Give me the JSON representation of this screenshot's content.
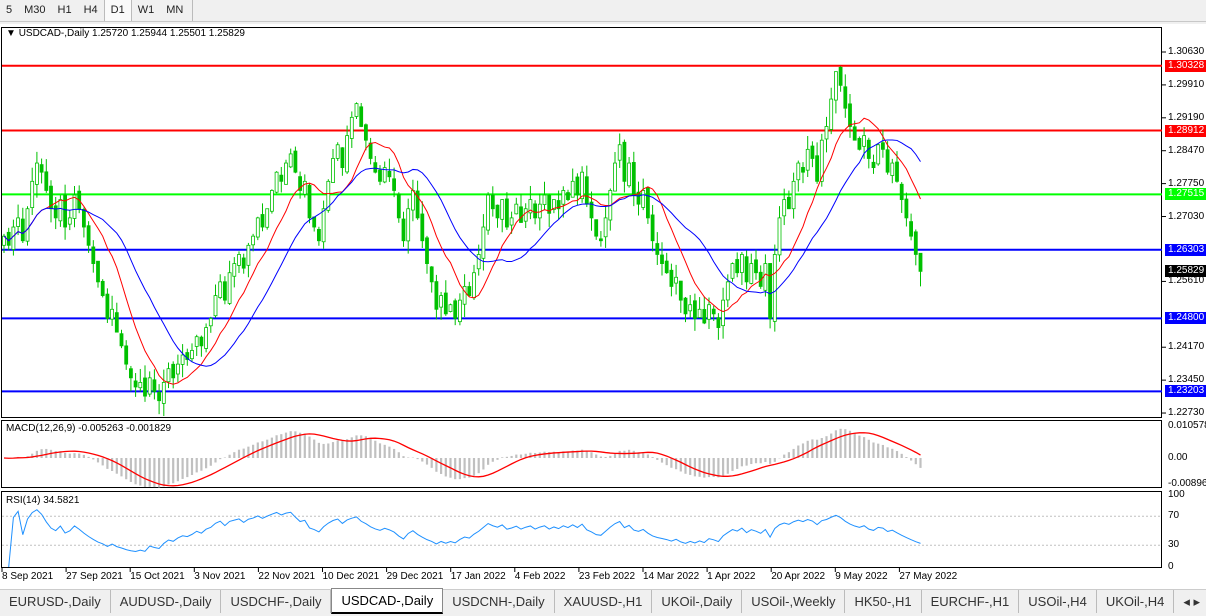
{
  "toolbar": {
    "timeframes": [
      "5",
      "M30",
      "H1",
      "H4",
      "D1",
      "W1",
      "MN"
    ],
    "active": "D1"
  },
  "chart": {
    "header": "USDCAD-,Daily  1.25720 1.25944 1.25501 1.25829",
    "symbol": "USDCAD-",
    "period": "Daily",
    "last_bar": {
      "open": 1.2572,
      "high": 1.25944,
      "low": 1.25501,
      "close": 1.25829
    },
    "current_price": "1.25829",
    "price_axis": [
      "1.30630",
      "1.29910",
      "1.29190",
      "1.28470",
      "1.27750",
      "1.27030",
      "1.25610",
      "1.24170",
      "1.23450",
      "1.22730"
    ],
    "levels": [
      {
        "price": "1.30328",
        "color": "#ff0000"
      },
      {
        "price": "1.28912",
        "color": "#ff0000"
      },
      {
        "price": "1.27515",
        "color": "#00ff00"
      },
      {
        "price": "1.26303",
        "color": "#0000ff"
      },
      {
        "price": "1.24800",
        "color": "#0000ff"
      },
      {
        "price": "1.23203",
        "color": "#0000ff"
      }
    ],
    "colors": {
      "bull": "#00c000",
      "bear": "#00c000",
      "ma_fast": "#ff0000",
      "ma_slow": "#0000ff",
      "macd_hist": "#c0c0c0",
      "macd_signal": "#ff0000",
      "rsi": "#1e90ff"
    },
    "dates": [
      "8 Sep 2021",
      "27 Sep 2021",
      "15 Oct 2021",
      "3 Nov 2021",
      "22 Nov 2021",
      "10 Dec 2021",
      "29 Dec 2021",
      "17 Jan 2022",
      "4 Feb 2022",
      "23 Feb 2022",
      "14 Mar 2022",
      "1 Apr 2022",
      "20 Apr 2022",
      "9 May 2022",
      "27 May 2022"
    ],
    "closes": [
      1.266,
      1.264,
      1.268,
      1.27,
      1.265,
      1.272,
      1.278,
      1.282,
      1.28,
      1.276,
      1.272,
      1.27,
      1.274,
      1.268,
      1.27,
      1.275,
      1.272,
      1.268,
      1.264,
      1.26,
      1.256,
      1.253,
      1.248,
      1.25,
      1.245,
      1.242,
      1.238,
      1.235,
      1.233,
      1.234,
      1.231,
      1.235,
      1.232,
      1.23,
      1.234,
      1.237,
      1.235,
      1.238,
      1.24,
      1.239,
      1.241,
      1.244,
      1.242,
      1.246,
      1.248,
      1.253,
      1.256,
      1.252,
      1.258,
      1.26,
      1.262,
      1.259,
      1.264,
      1.266,
      1.27,
      1.268,
      1.272,
      1.276,
      1.28,
      1.278,
      1.282,
      1.284,
      1.28,
      1.276,
      1.278,
      1.27,
      1.268,
      1.265,
      1.272,
      1.278,
      1.283,
      1.286,
      1.281,
      1.288,
      1.292,
      1.295,
      1.29,
      1.287,
      1.283,
      1.28,
      1.278,
      1.281,
      1.279,
      1.276,
      1.27,
      1.265,
      1.272,
      1.276,
      1.27,
      1.265,
      1.26,
      1.256,
      1.25,
      1.253,
      1.249,
      1.251,
      1.248,
      1.252,
      1.255,
      1.253,
      1.258,
      1.262,
      1.268,
      1.275,
      1.272,
      1.27,
      1.274,
      1.268,
      1.27,
      1.273,
      1.269,
      1.272,
      1.274,
      1.27,
      1.273,
      1.275,
      1.271,
      1.274,
      1.272,
      1.276,
      1.274,
      1.278,
      1.275,
      1.28,
      1.273,
      1.27,
      1.266,
      1.265,
      1.27,
      1.276,
      1.282,
      1.286,
      1.278,
      1.282,
      1.275,
      1.273,
      1.276,
      1.27,
      1.265,
      1.262,
      1.26,
      1.258,
      1.255,
      1.257,
      1.252,
      1.249,
      1.251,
      1.248,
      1.25,
      1.247,
      1.251,
      1.249,
      1.246,
      1.252,
      1.256,
      1.26,
      1.258,
      1.262,
      1.256,
      1.26,
      1.258,
      1.255,
      1.26,
      1.248,
      1.262,
      1.27,
      1.274,
      1.272,
      1.278,
      1.282,
      1.28,
      1.285,
      1.283,
      1.278,
      1.287,
      1.29,
      1.296,
      1.302,
      1.299,
      1.294,
      1.29,
      1.287,
      1.285,
      1.288,
      1.283,
      1.281,
      1.286,
      1.285,
      1.28,
      1.282,
      1.278,
      1.274,
      1.27,
      1.266,
      1.262,
      1.2583
    ]
  },
  "macd": {
    "label": "MACD(12,26,9) -0.005263 -0.001829",
    "axis": [
      "0.010578",
      "0.00",
      "-0.00896"
    ]
  },
  "rsi": {
    "label": "RSI(14) 34.5821",
    "axis": [
      "100",
      "70",
      "30",
      "0"
    ],
    "levels": [
      70,
      30
    ]
  },
  "tabs": [
    "EURUSD-,Daily",
    "AUDUSD-,Daily",
    "USDCHF-,Daily",
    "USDCAD-,Daily",
    "USDCNH-,Daily",
    "XAUUSD-,H1",
    "UKOil-,Daily",
    "USOil-,Weekly",
    "HK50-,H1",
    "EURCHF-,H1",
    "USOil-,H4",
    "UKOil-,H4"
  ],
  "active_tab": "USDCAD-,Daily"
}
